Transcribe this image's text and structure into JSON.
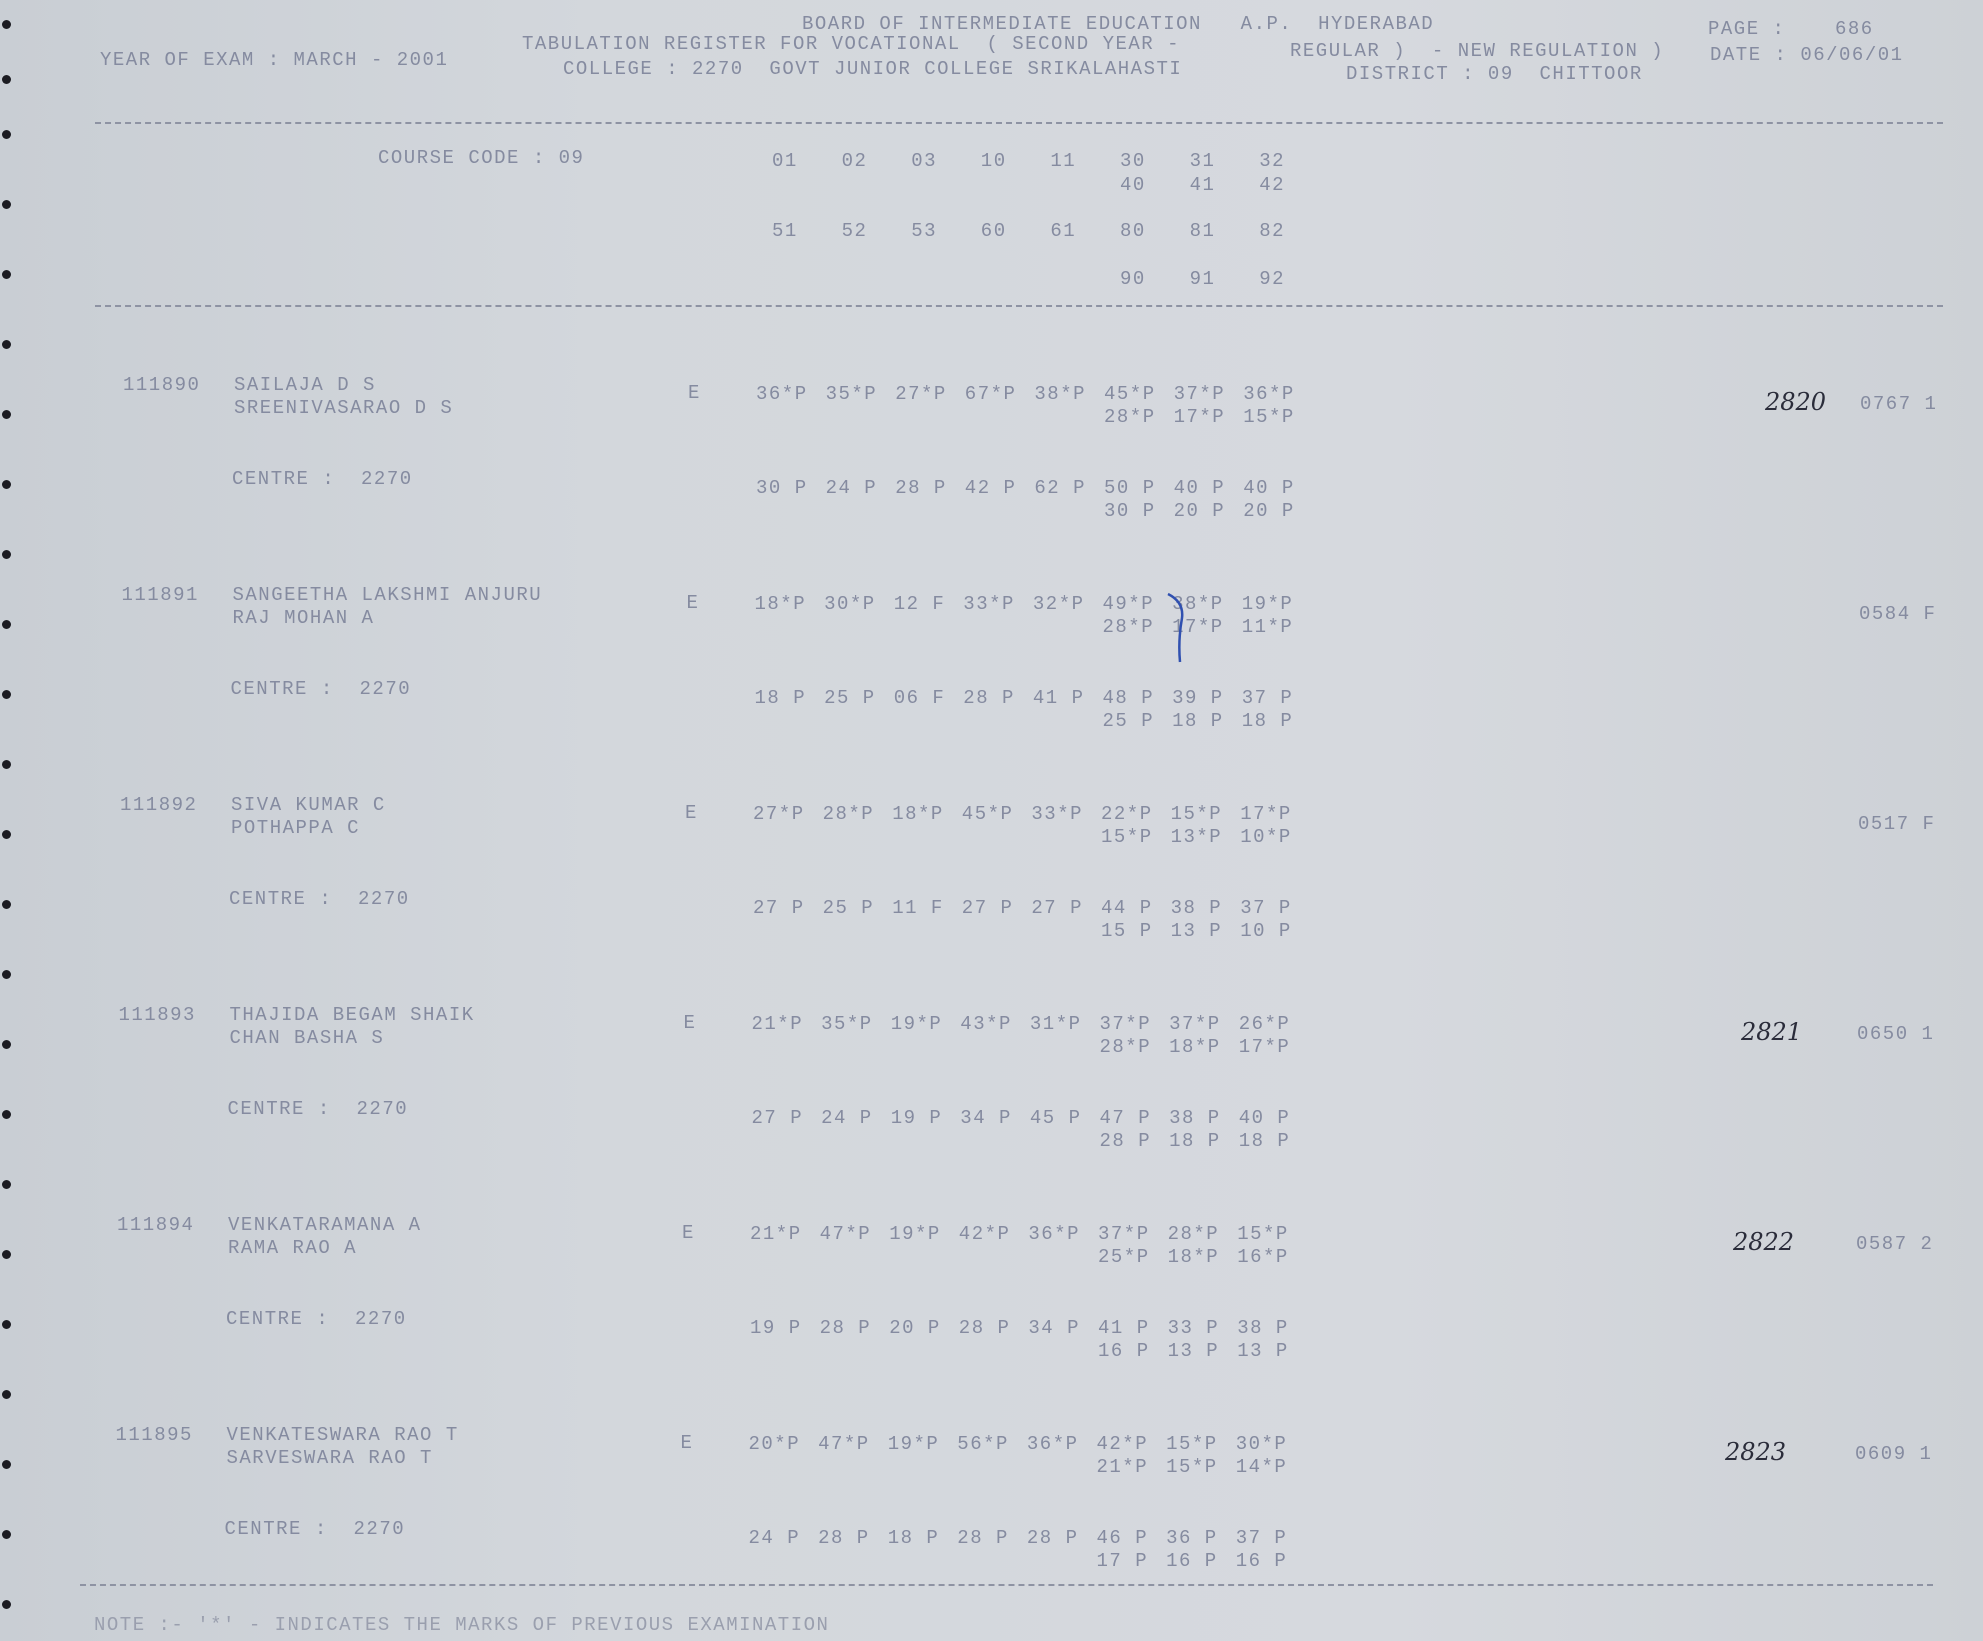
{
  "header": {
    "board": "BOARD OF INTERMEDIATE EDUCATION   A.P.  HYDERABAD",
    "page_label": "PAGE :",
    "page_number": "686",
    "register_title": "TABULATION REGISTER FOR VOCATIONAL  ( SECOND YEAR -",
    "regulation": "REGULAR )  - NEW REGULATION )",
    "date": "DATE : 06/06/01",
    "year_of_exam": "YEAR OF EXAM : MARCH - 2001",
    "college": "COLLEGE : 2270  GOVT JUNIOR COLLEGE SRIKALAHASTI",
    "district": "DISTRICT : 09  CHITTOOR"
  },
  "course": {
    "label": "COURSE CODE : 09",
    "row1": [
      "01",
      "02",
      "03",
      "10",
      "11",
      "30",
      "31",
      "32"
    ],
    "row1b": [
      "40",
      "41",
      "42"
    ],
    "row2": [
      "51",
      "52",
      "53",
      "60",
      "61",
      "80",
      "81",
      "82"
    ],
    "row2b": [
      "90",
      "91",
      "92"
    ]
  },
  "students": [
    {
      "roll": "111890",
      "name": "SAILAJA D S",
      "parent": "SREENIVASARAO D S",
      "medium": "E",
      "centre": "CENTRE :  2270",
      "prev": [
        "36*P",
        "35*P",
        "27*P",
        "67*P",
        "38*P",
        "45*P",
        "37*P",
        "36*P"
      ],
      "prev2": [
        "28*P",
        "17*P",
        "15*P"
      ],
      "curr": [
        "30 P",
        "24 P",
        "28 P",
        "42 P",
        "62 P",
        "50 P",
        "40 P",
        "40 P"
      ],
      "curr2": [
        "30 P",
        "20 P",
        "20 P"
      ],
      "total": "0767 1",
      "handwritten": "2820"
    },
    {
      "roll": "111891",
      "name": "SANGEETHA LAKSHMI ANJURU",
      "parent": "RAJ MOHAN A",
      "medium": "E",
      "centre": "CENTRE :  2270",
      "prev": [
        "18*P",
        "30*P",
        "12 F",
        "33*P",
        "32*P",
        "49*P",
        "38*P",
        "19*P"
      ],
      "prev2": [
        "28*P",
        "17*P",
        "11*P"
      ],
      "curr": [
        "18 P",
        "25 P",
        "06 F",
        "28 P",
        "41 P",
        "48 P",
        "39 P",
        "37 P"
      ],
      "curr2": [
        "25 P",
        "18 P",
        "18 P"
      ],
      "total": "0584 F",
      "handwritten": ""
    },
    {
      "roll": "111892",
      "name": "SIVA KUMAR C",
      "parent": "POTHAPPA C",
      "medium": "E",
      "centre": "CENTRE :  2270",
      "prev": [
        "27*P",
        "28*P",
        "18*P",
        "45*P",
        "33*P",
        "22*P",
        "15*P",
        "17*P"
      ],
      "prev2": [
        "15*P",
        "13*P",
        "10*P"
      ],
      "curr": [
        "27 P",
        "25 P",
        "11 F",
        "27 P",
        "27 P",
        "44 P",
        "38 P",
        "37 P"
      ],
      "curr2": [
        "15 P",
        "13 P",
        "10 P"
      ],
      "total": "0517 F",
      "handwritten": ""
    },
    {
      "roll": "111893",
      "name": "THAJIDA BEGAM SHAIK",
      "parent": "CHAN BASHA S",
      "medium": "E",
      "centre": "CENTRE :  2270",
      "prev": [
        "21*P",
        "35*P",
        "19*P",
        "43*P",
        "31*P",
        "37*P",
        "37*P",
        "26*P"
      ],
      "prev2": [
        "28*P",
        "18*P",
        "17*P"
      ],
      "curr": [
        "27 P",
        "24 P",
        "19 P",
        "34 P",
        "45 P",
        "47 P",
        "38 P",
        "40 P"
      ],
      "curr2": [
        "28 P",
        "18 P",
        "18 P"
      ],
      "total": "0650 1",
      "handwritten": "2821"
    },
    {
      "roll": "111894",
      "name": "VENKATARAMANA A",
      "parent": "RAMA RAO A",
      "medium": "E",
      "centre": "CENTRE :  2270",
      "prev": [
        "21*P",
        "47*P",
        "19*P",
        "42*P",
        "36*P",
        "37*P",
        "28*P",
        "15*P"
      ],
      "prev2": [
        "25*P",
        "18*P",
        "16*P"
      ],
      "curr": [
        "19 P",
        "28 P",
        "20 P",
        "28 P",
        "34 P",
        "41 P",
        "33 P",
        "38 P"
      ],
      "curr2": [
        "16 P",
        "13 P",
        "13 P"
      ],
      "total": "0587 2",
      "handwritten": "2822"
    },
    {
      "roll": "111895",
      "name": "VENKATESWARA RAO T",
      "parent": "SARVESWARA RAO T",
      "medium": "E",
      "centre": "CENTRE :  2270",
      "prev": [
        "20*P",
        "47*P",
        "19*P",
        "56*P",
        "36*P",
        "42*P",
        "15*P",
        "30*P"
      ],
      "prev2": [
        "21*P",
        "15*P",
        "14*P"
      ],
      "curr": [
        "24 P",
        "28 P",
        "18 P",
        "28 P",
        "28 P",
        "46 P",
        "36 P",
        "37 P"
      ],
      "curr2": [
        "17 P",
        "16 P",
        "16 P"
      ],
      "total": "0609 1",
      "handwritten": "2823"
    }
  ],
  "note": "NOTE :- '*' - INDICATES THE MARKS OF PREVIOUS EXAMINATION",
  "colors": {
    "print": "#858ba0",
    "paper": "#d3d7dc",
    "ink": "#2a2c3a",
    "pen": "#3050b0"
  }
}
